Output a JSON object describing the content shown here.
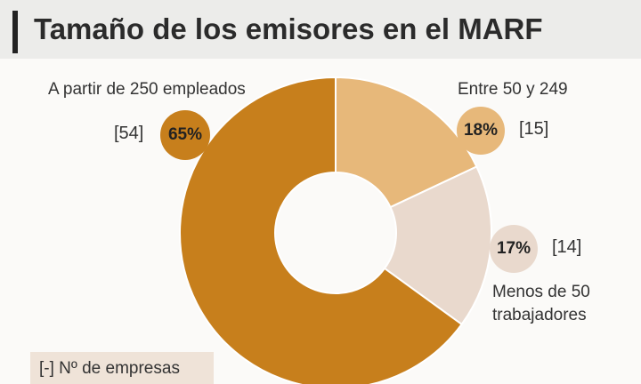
{
  "chart_data": {
    "type": "pie",
    "title": "Tamaño de los emisores en el MARF",
    "categories": [
      "Entre 50 y 249",
      "Menos de 50 trabajadores",
      "A partir de 250 empleados"
    ],
    "values": [
      18,
      17,
      65
    ],
    "value_labels": [
      "18%",
      "17%",
      "65%"
    ],
    "counts": [
      15,
      14,
      54
    ],
    "count_labels": [
      "[15]",
      "[14]",
      "[54]"
    ],
    "colors": [
      "#e7b87a",
      "#e9d9cd",
      "#c77f1c"
    ],
    "note": "[-] Nº de empresas"
  }
}
